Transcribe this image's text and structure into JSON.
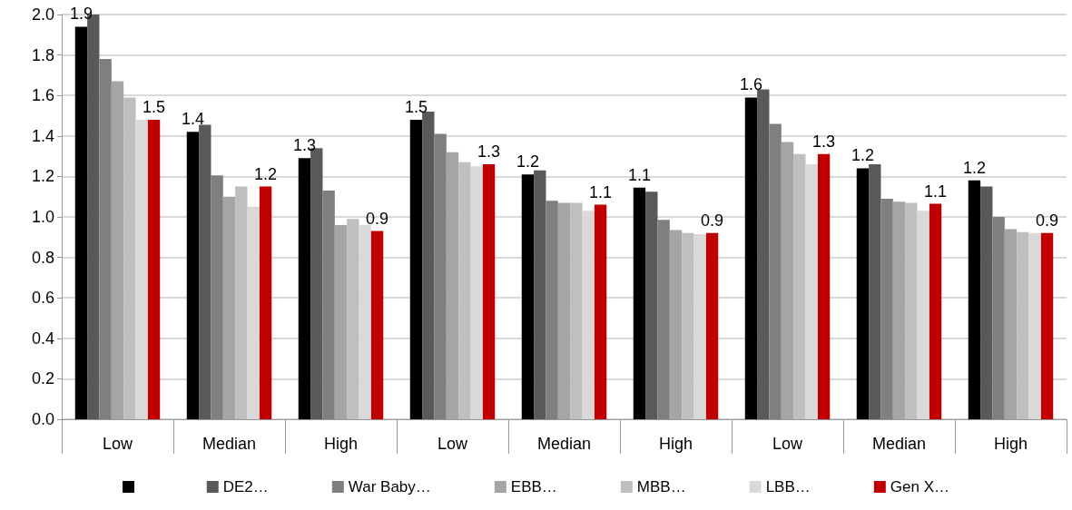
{
  "chart_data": {
    "type": "bar",
    "categories": [
      "Low",
      "Median",
      "High",
      "Low",
      "Median",
      "High",
      "Low",
      "Median",
      "High"
    ],
    "series": [
      {
        "color": "#000000",
        "values": [
          1.94,
          1.42,
          1.29,
          1.48,
          1.21,
          1.145,
          1.59,
          1.24,
          1.18
        ],
        "value_labels": [
          "1.9",
          "1.4",
          "1.3",
          "1.5",
          "1.2",
          "1.1",
          "1.6",
          "1.2",
          "1.2"
        ]
      },
      {
        "name": "DE2…",
        "color": "#595959",
        "values": [
          2.0,
          1.455,
          1.34,
          1.52,
          1.23,
          1.125,
          1.63,
          1.26,
          1.15
        ]
      },
      {
        "name": "War Baby…",
        "color": "#7f7f7f",
        "values": [
          1.78,
          1.205,
          1.13,
          1.41,
          1.08,
          0.985,
          1.46,
          1.09,
          1.0
        ]
      },
      {
        "name": "EBB…",
        "color": "#a5a5a5",
        "values": [
          1.67,
          1.1,
          0.96,
          1.32,
          1.07,
          0.935,
          1.37,
          1.075,
          0.94
        ]
      },
      {
        "name": "MBB…",
        "color": "#bfbfbf",
        "values": [
          1.59,
          1.15,
          0.99,
          1.27,
          1.07,
          0.92,
          1.31,
          1.07,
          0.925
        ]
      },
      {
        "name": "LBB…",
        "color": "#d9d9d9",
        "values": [
          1.48,
          1.05,
          0.96,
          1.25,
          1.03,
          0.915,
          1.26,
          1.03,
          0.92
        ]
      },
      {
        "name": "Gen X…",
        "color": "#c00000",
        "values": [
          1.48,
          1.15,
          0.93,
          1.26,
          1.06,
          0.92,
          1.31,
          1.065,
          0.92
        ],
        "value_labels": [
          "1.5",
          "1.2",
          "0.9",
          "1.3",
          "1.1",
          "0.9",
          "1.3",
          "1.1",
          "0.9"
        ]
      }
    ],
    "ylim": [
      0,
      2
    ],
    "yticks": [
      {
        "value": 0,
        "label": "0.0"
      },
      {
        "value": 0.2,
        "label": "0.2"
      },
      {
        "value": 0.4,
        "label": "0.4"
      },
      {
        "value": 0.6,
        "label": "0.6"
      },
      {
        "value": 0.8,
        "label": "0.8"
      },
      {
        "value": 1,
        "label": "1.0"
      },
      {
        "value": 1.2,
        "label": "1.2"
      },
      {
        "value": 1.4,
        "label": "1.4"
      },
      {
        "value": 1.6,
        "label": "1.6"
      },
      {
        "value": 1.8,
        "label": "1.8"
      },
      {
        "value": 2,
        "label": "2.0"
      }
    ],
    "grid": "y",
    "legend": "bottom"
  }
}
